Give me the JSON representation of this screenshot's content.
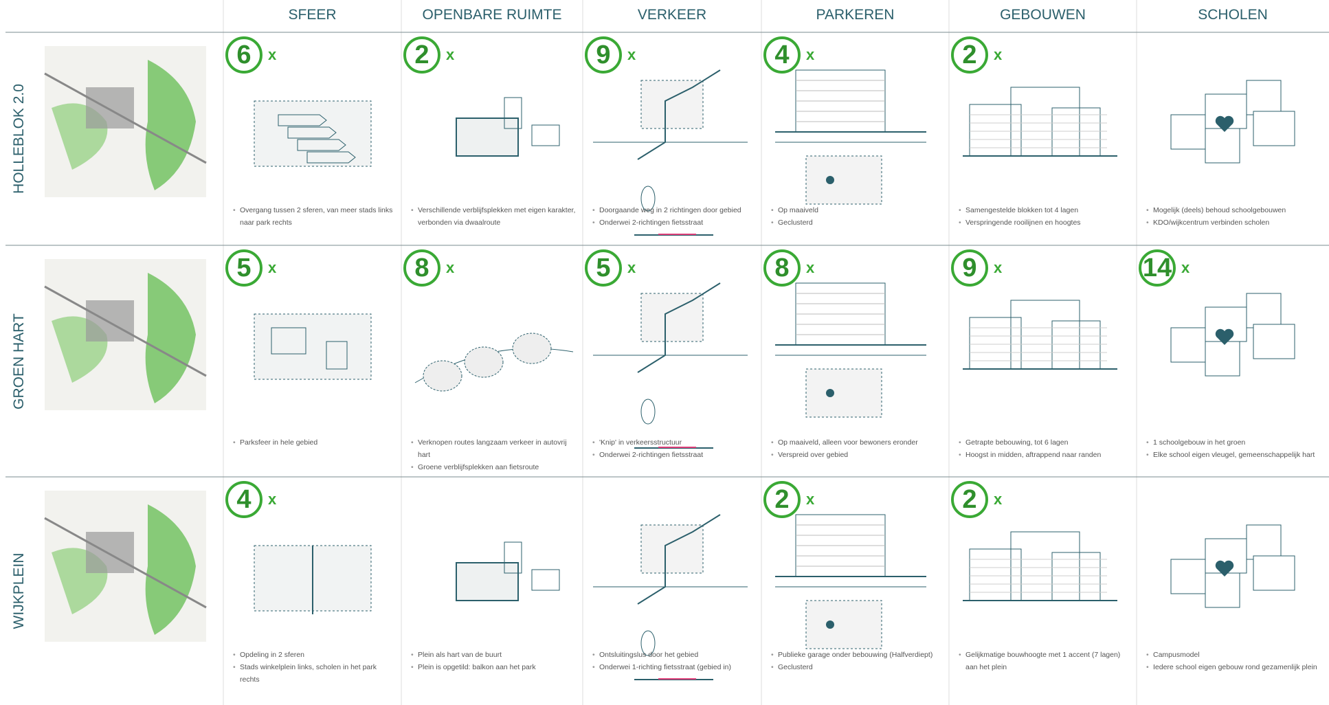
{
  "header": {
    "columns": [
      "SFEER",
      "OPENBARE RUIMTE",
      "VERKEER",
      "PARKEREN",
      "GEBOUWEN",
      "SCHOLEN"
    ]
  },
  "count_suffix": "x",
  "rows": [
    {
      "label": "HOLLEBLOK 2.0",
      "cells": [
        {
          "count": 6,
          "bullets": [
            "Overgang tussen 2 sferen, van meer stads links naar park rechts"
          ]
        },
        {
          "count": 2,
          "bullets": [
            "Verschillende verblijfsplekken met eigen karakter, verbonden via dwaalroute"
          ]
        },
        {
          "count": 9,
          "bullets": [
            "Doorgaande weg in 2 richtingen door gebied",
            "Onderwei 2-richtingen fietsstraat"
          ]
        },
        {
          "count": 4,
          "bullets": [
            "Op maaiveld",
            "Geclusterd"
          ]
        },
        {
          "count": 2,
          "bullets": [
            "Samengestelde blokken tot 4 lagen",
            "Verspringende rooilijnen en hoogtes"
          ]
        },
        {
          "count": null,
          "bullets": [
            "Mogelijk (deels) behoud schoolgebouwen",
            "KDO/wijkcentrum verbinden scholen"
          ]
        }
      ]
    },
    {
      "label": "GROEN HART",
      "cells": [
        {
          "count": 5,
          "bullets": [
            "Parksfeer in hele gebied"
          ]
        },
        {
          "count": 8,
          "bullets": [
            "Verknopen routes langzaam verkeer in autovrij hart",
            "Groene verblijfsplekken aan fietsroute"
          ]
        },
        {
          "count": 5,
          "bullets": [
            "'Knip' in verkeersstructuur",
            "Onderwei 2-richtingen fietsstraat"
          ]
        },
        {
          "count": 8,
          "bullets": [
            "Op maaiveld, alleen voor bewoners eronder",
            "Verspreid over gebied"
          ]
        },
        {
          "count": 9,
          "bullets": [
            "Getrapte bebouwing, tot 6 lagen",
            "Hoogst in midden, aftrappend naar randen"
          ]
        },
        {
          "count": 14,
          "bullets": [
            "1 schoolgebouw in het groen",
            "Elke school eigen vleugel, gemeenschappelijk hart"
          ]
        }
      ]
    },
    {
      "label": "WIJKPLEIN",
      "cells": [
        {
          "count": 4,
          "bullets": [
            "Opdeling in 2 sferen",
            "Stads winkelplein links, scholen in het park rechts"
          ]
        },
        {
          "count": null,
          "bullets": [
            "Plein als hart van de buurt",
            "Plein is opgetild: balkon aan het park"
          ]
        },
        {
          "count": null,
          "bullets": [
            "Ontsluitingslus door het gebied",
            "Onderwei 1-richting fietsstraat (gebied in)"
          ]
        },
        {
          "count": 2,
          "bullets": [
            "Publieke garage onder bebouwing (Halfverdiept)",
            "Geclusterd"
          ]
        },
        {
          "count": 2,
          "bullets": [
            "Gelijkmatige bouwhoogte met 1 accent (7 lagen) aan het plein"
          ]
        },
        {
          "count": null,
          "bullets": [
            "Campusmodel",
            "Iedere school eigen gebouw rond gezamenlijk plein"
          ]
        }
      ]
    }
  ]
}
